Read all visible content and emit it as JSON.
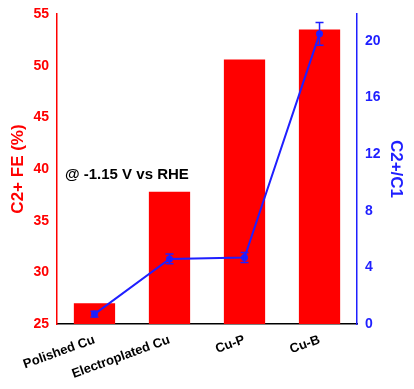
{
  "chart_data": {
    "type": "bar",
    "categories": [
      "Polished Cu",
      "Electroplated Cu",
      "Cu-P",
      "Cu-B"
    ],
    "y_label": "C2+ FE (%)",
    "y2_label": "C2+/C1",
    "annotations": [
      "@ -1.15 V vs RHE"
    ],
    "ylim": [
      25,
      55
    ],
    "yticks": [
      25,
      30,
      35,
      40,
      45,
      50,
      55
    ],
    "y2lim": [
      0,
      21.9
    ],
    "y2ticks": [
      0,
      4,
      8,
      12,
      16,
      20
    ],
    "grid": false,
    "series": [
      {
        "name": "C2+ FE (%)",
        "type": "bar",
        "color": "#ff0000",
        "values": [
          27,
          37.8,
          50.6,
          53.5
        ]
      },
      {
        "name": "C2+/C1",
        "type": "line",
        "axis": "y2",
        "color": "#1f1fff",
        "marker": "circle",
        "line_style": "solid",
        "values": [
          0.7,
          4.6,
          4.7,
          20.5
        ],
        "errors": [
          0.2,
          0.35,
          0.35,
          0.8
        ]
      }
    ]
  }
}
